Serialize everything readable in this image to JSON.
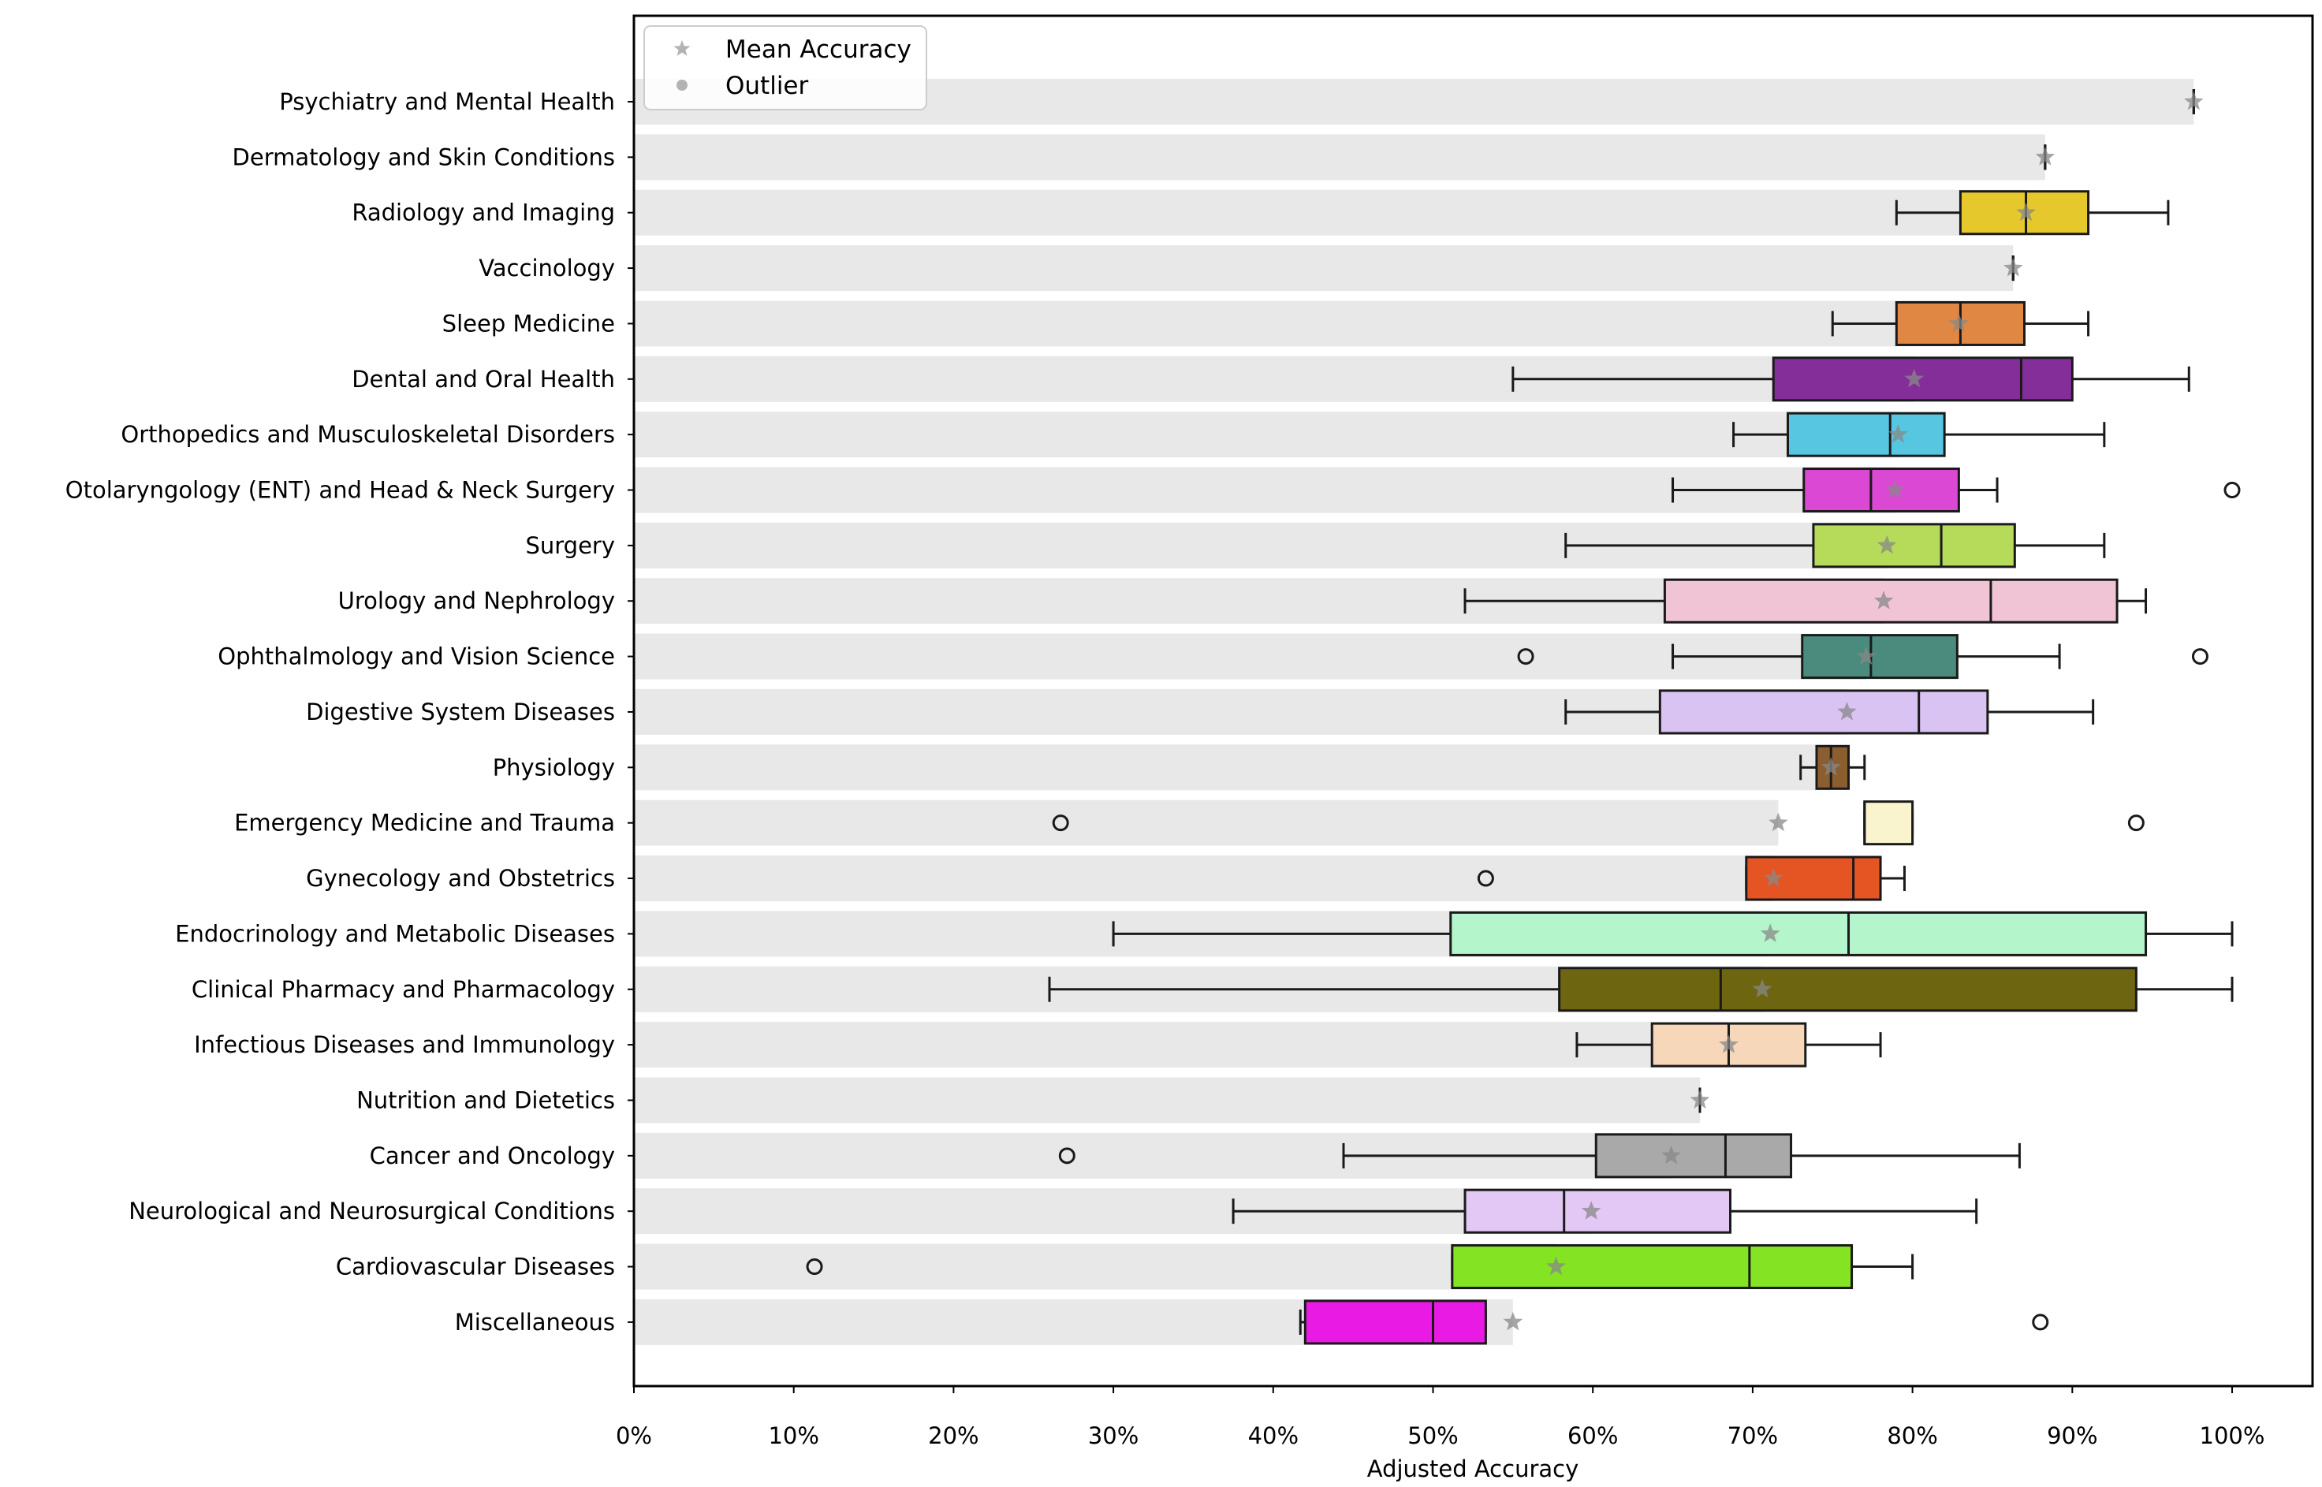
{
  "chart_data": {
    "type": "box",
    "title": "",
    "xlabel": "Adjusted Accuracy",
    "ylabel": "",
    "xlim": [
      0,
      105
    ],
    "xticks": [
      0,
      10,
      20,
      30,
      40,
      50,
      60,
      70,
      80,
      90,
      100
    ],
    "xtick_labels": [
      "0%",
      "10%",
      "20%",
      "30%",
      "40%",
      "50%",
      "60%",
      "70%",
      "80%",
      "90%",
      "100%"
    ],
    "legend": {
      "location": "top-left",
      "entries": [
        {
          "label": "Mean Accuracy",
          "marker": "star"
        },
        {
          "label": "Outlier",
          "marker": "circle"
        }
      ]
    },
    "series": [
      {
        "name": "Psychiatry and Mental Health",
        "mean": 97.6,
        "bar": 97.6,
        "whisker_low": 97.6,
        "q1": 97.6,
        "median": 97.6,
        "q3": 97.6,
        "whisker_high": 97.6,
        "outliers": [],
        "color": "#cccccc"
      },
      {
        "name": "Dermatology and Skin Conditions",
        "mean": 88.3,
        "bar": 88.3,
        "whisker_low": 88.3,
        "q1": 88.3,
        "median": 88.3,
        "q3": 88.3,
        "whisker_high": 88.3,
        "outliers": [],
        "color": "#cccccc"
      },
      {
        "name": "Radiology and Imaging",
        "mean": 87.1,
        "bar": 87.1,
        "whisker_low": 79.0,
        "q1": 83.0,
        "median": 87.1,
        "q3": 91.0,
        "whisker_high": 96.0,
        "outliers": [],
        "color": "#e5c82b"
      },
      {
        "name": "Vaccinology",
        "mean": 86.3,
        "bar": 86.3,
        "whisker_low": 86.3,
        "q1": 86.3,
        "median": 86.3,
        "q3": 86.3,
        "whisker_high": 86.3,
        "outliers": [],
        "color": "#cccccc"
      },
      {
        "name": "Sleep Medicine",
        "mean": 82.9,
        "bar": 82.9,
        "whisker_low": 75.0,
        "q1": 79.0,
        "median": 83.0,
        "q3": 87.0,
        "whisker_high": 91.0,
        "outliers": [],
        "color": "#e08743"
      },
      {
        "name": "Dental and Oral Health",
        "mean": 80.1,
        "bar": 80.1,
        "whisker_low": 55.0,
        "q1": 71.3,
        "median": 86.8,
        "q3": 90.0,
        "whisker_high": 97.3,
        "outliers": [],
        "color": "#842e9a"
      },
      {
        "name": "Orthopedics and Musculoskeletal Disorders",
        "mean": 79.1,
        "bar": 79.1,
        "whisker_low": 68.8,
        "q1": 72.2,
        "median": 78.6,
        "q3": 82.0,
        "whisker_high": 92.0,
        "outliers": [],
        "color": "#57c6e1"
      },
      {
        "name": "Otolaryngology (ENT) and Head & Neck Surgery",
        "mean": 78.9,
        "bar": 78.9,
        "whisker_low": 65.0,
        "q1": 73.2,
        "median": 77.4,
        "q3": 82.9,
        "whisker_high": 85.3,
        "outliers": [
          100
        ],
        "color": "#da48d4"
      },
      {
        "name": "Surgery",
        "mean": 78.4,
        "bar": 78.4,
        "whisker_low": 58.3,
        "q1": 73.8,
        "median": 81.8,
        "q3": 86.4,
        "whisker_high": 92.0,
        "outliers": [],
        "color": "#b6da5a"
      },
      {
        "name": "Urology and Nephrology",
        "mean": 78.2,
        "bar": 78.2,
        "whisker_low": 52.0,
        "q1": 64.5,
        "median": 84.9,
        "q3": 92.8,
        "whisker_high": 94.6,
        "outliers": [],
        "color": "#f0c4d4"
      },
      {
        "name": "Ophthalmology and Vision Science",
        "mean": 77.1,
        "bar": 77.1,
        "whisker_low": 65.0,
        "q1": 73.1,
        "median": 77.4,
        "q3": 82.8,
        "whisker_high": 89.2,
        "outliers": [
          55.8,
          98.0
        ],
        "color": "#4a8b7e"
      },
      {
        "name": "Digestive System Diseases",
        "mean": 75.9,
        "bar": 75.9,
        "whisker_low": 58.3,
        "q1": 64.2,
        "median": 80.4,
        "q3": 84.7,
        "whisker_high": 91.3,
        "outliers": [],
        "color": "#d9c3f2"
      },
      {
        "name": "Physiology",
        "mean": 74.9,
        "bar": 74.9,
        "whisker_low": 73.0,
        "q1": 74.0,
        "median": 74.9,
        "q3": 76.0,
        "whisker_high": 77.0,
        "outliers": [],
        "color": "#8b5e2f"
      },
      {
        "name": "Emergency Medicine and Trauma",
        "mean": 71.6,
        "bar": 71.6,
        "whisker_low": 77.0,
        "q1": 77.0,
        "median": 77.0,
        "q3": 80.0,
        "whisker_high": 80.0,
        "outliers": [
          26.7,
          94.0
        ],
        "color": "#f9f3ce"
      },
      {
        "name": "Gynecology and Obstetrics",
        "mean": 71.3,
        "bar": 71.3,
        "whisker_low": 69.6,
        "q1": 69.6,
        "median": 76.3,
        "q3": 78.0,
        "whisker_high": 79.5,
        "outliers": [
          53.3
        ],
        "color": "#e55524"
      },
      {
        "name": "Endocrinology and Metabolic Diseases",
        "mean": 71.1,
        "bar": 71.1,
        "whisker_low": 30.0,
        "q1": 51.1,
        "median": 76.0,
        "q3": 94.6,
        "whisker_high": 100.0,
        "outliers": [],
        "color": "#b4f5cc"
      },
      {
        "name": "Clinical Pharmacy and Pharmacology",
        "mean": 70.6,
        "bar": 70.6,
        "whisker_low": 26.0,
        "q1": 57.9,
        "median": 68.0,
        "q3": 94.0,
        "whisker_high": 100.0,
        "outliers": [],
        "color": "#6e6510"
      },
      {
        "name": "Infectious Diseases and Immunology",
        "mean": 68.5,
        "bar": 68.5,
        "whisker_low": 59.0,
        "q1": 63.7,
        "median": 68.5,
        "q3": 73.3,
        "whisker_high": 78.0,
        "outliers": [],
        "color": "#f6d7b9"
      },
      {
        "name": "Nutrition and Dietetics",
        "mean": 66.7,
        "bar": 66.7,
        "whisker_low": 66.7,
        "q1": 66.7,
        "median": 66.7,
        "q3": 66.7,
        "whisker_high": 66.7,
        "outliers": [],
        "color": "#cccccc"
      },
      {
        "name": "Cancer and Oncology",
        "mean": 64.9,
        "bar": 64.9,
        "whisker_low": 44.4,
        "q1": 60.2,
        "median": 68.3,
        "q3": 72.4,
        "whisker_high": 86.7,
        "outliers": [
          27.1
        ],
        "color": "#a9a9a9"
      },
      {
        "name": "Neurological and Neurosurgical Conditions",
        "mean": 59.9,
        "bar": 59.9,
        "whisker_low": 37.5,
        "q1": 52.0,
        "median": 58.2,
        "q3": 68.6,
        "whisker_high": 84.0,
        "outliers": [],
        "color": "#e3c7f4"
      },
      {
        "name": "Cardiovascular Diseases",
        "mean": 57.7,
        "bar": 57.7,
        "whisker_low": 51.2,
        "q1": 51.2,
        "median": 69.8,
        "q3": 76.2,
        "whisker_high": 80.0,
        "outliers": [
          11.3
        ],
        "color": "#84e323"
      },
      {
        "name": "Miscellaneous",
        "mean": 55.0,
        "bar": 55.0,
        "whisker_low": 41.7,
        "q1": 42.0,
        "median": 50.0,
        "q3": 53.3,
        "whisker_high": 53.3,
        "outliers": [
          88.0
        ],
        "color": "#e91ae4"
      }
    ]
  }
}
